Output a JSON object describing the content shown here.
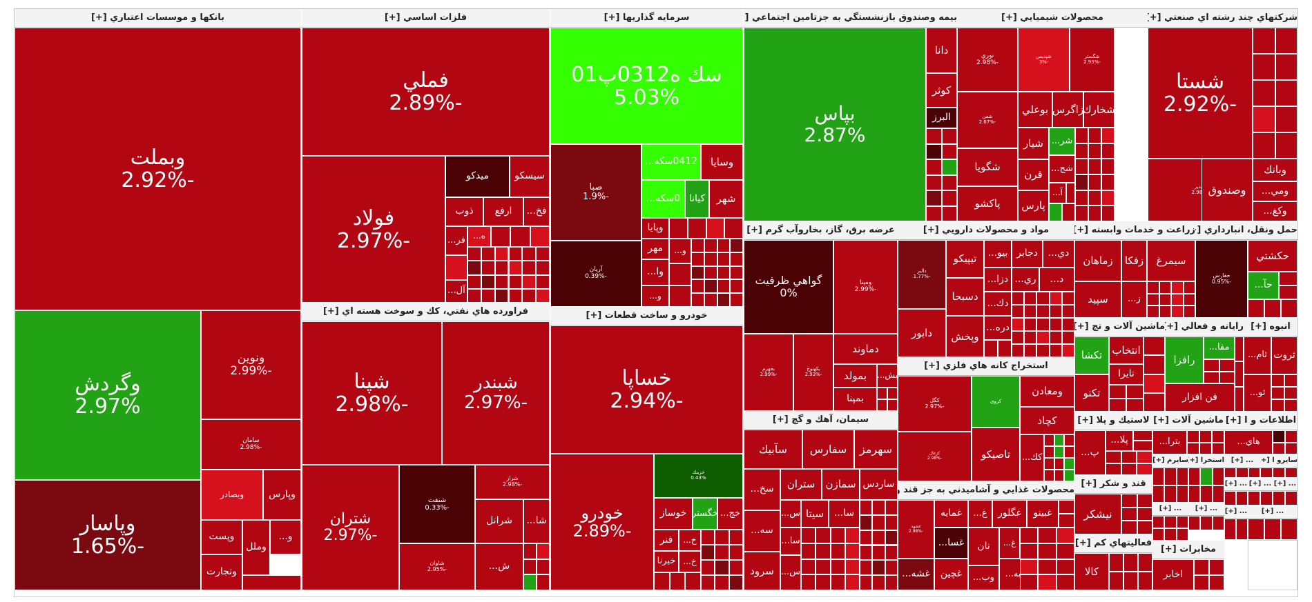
{
  "colors": {
    "red": "#b20612",
    "red_bright": "#d6101d",
    "red_dark": "#7a0a0f",
    "maroon": "#4a0205",
    "green": "#22a316",
    "green_bright": "#33ff00",
    "green_dark": "#0d5c00"
  },
  "sectors": {
    "banks": {
      "title": "بانكها و موسسات اعتباري [+]",
      "tiles": [
        {
          "name": "وبملت",
          "pct": "-2.92%"
        },
        {
          "name": "وگردش",
          "pct": "2.97%"
        },
        {
          "name": "وپاسار",
          "pct": "-1.65%"
        },
        {
          "name": "ونوين",
          "pct": "-2.99%"
        },
        {
          "name": "سامان",
          "pct": "-2.98%"
        },
        {
          "name": "وپارس",
          "pct": ""
        },
        {
          "name": "وبصادر",
          "pct": ""
        },
        {
          "name": "وملل",
          "pct": ""
        },
        {
          "name": "وتجارت",
          "pct": ""
        },
        {
          "name": "وپست",
          "pct": ""
        },
        {
          "name": "و...",
          "pct": ""
        }
      ]
    },
    "metals": {
      "title": "فلزات اساسي [+]",
      "tiles": [
        {
          "name": "فملي",
          "pct": "-2.89%"
        },
        {
          "name": "فولاد",
          "pct": "-2.97%"
        },
        {
          "name": "ميدكو",
          "pct": ""
        },
        {
          "name": "سيسكو",
          "pct": ""
        },
        {
          "name": "ذوب",
          "pct": ""
        },
        {
          "name": "ارفع",
          "pct": ""
        },
        {
          "name": "فخ...",
          "pct": ""
        },
        {
          "name": "فر...",
          "pct": ""
        },
        {
          "name": "آل...",
          "pct": ""
        },
        {
          "name": "ه...",
          "pct": ""
        }
      ]
    },
    "investment": {
      "title": "سرمايه گذاريها [+]",
      "tiles": [
        {
          "name": "سك ه0312پ01",
          "pct": "5.03%"
        },
        {
          "name": "صبا",
          "pct": "-1.9%"
        },
        {
          "name": "آريان",
          "pct": "-0.39%"
        },
        {
          "name": "0412سكه...",
          "pct": ""
        },
        {
          "name": "0سكه...",
          "pct": ""
        },
        {
          "name": "كيانا",
          "pct": ""
        },
        {
          "name": "وسايا",
          "pct": ""
        },
        {
          "name": "شهر",
          "pct": ""
        },
        {
          "name": "وپايا",
          "pct": ""
        },
        {
          "name": "مهر",
          "pct": ""
        },
        {
          "name": "و...",
          "pct": ""
        },
        {
          "name": "وا...",
          "pct": ""
        },
        {
          "name": "و...",
          "pct": ""
        }
      ]
    },
    "insurance": {
      "title": "بيمه وصندوق بازنشستگي به جزتامين اجتماعي [+]",
      "tiles": [
        {
          "name": "بپاس",
          "pct": "2.87%"
        },
        {
          "name": "دانا",
          "pct": ""
        },
        {
          "name": "كوثر",
          "pct": ""
        },
        {
          "name": "البرز",
          "pct": ""
        }
      ]
    },
    "chemicals": {
      "title": "محصولات شيميايي [+]",
      "tiles": [
        {
          "name": "نوري",
          "pct": "-2.98%"
        },
        {
          "name": "شپديس",
          "pct": "-3%"
        },
        {
          "name": "شگستر",
          "pct": "-2.93%"
        },
        {
          "name": "بوعلي",
          "pct": ""
        },
        {
          "name": "زاگرس",
          "pct": ""
        },
        {
          "name": "شخارك",
          "pct": ""
        },
        {
          "name": "شفن",
          "pct": "-2.67%"
        },
        {
          "name": "شگويا",
          "pct": ""
        },
        {
          "name": "پاكشو",
          "pct": ""
        },
        {
          "name": "شيار",
          "pct": ""
        },
        {
          "name": "قرن",
          "pct": ""
        },
        {
          "name": "پارس",
          "pct": ""
        },
        {
          "name": "شج...",
          "pct": ""
        },
        {
          "name": "شر...",
          "pct": ""
        },
        {
          "name": "آ...",
          "pct": ""
        }
      ]
    },
    "diversified": {
      "title": "شركتهاي چند رشته اي صنعتي [+]",
      "tiles": [
        {
          "name": "شستا",
          "pct": "-2.92%"
        },
        {
          "name": "وصندوق",
          "pct": ""
        },
        {
          "name": "وغدير",
          "pct": "-2.98%"
        },
        {
          "name": "وبانك",
          "pct": ""
        },
        {
          "name": "ومي...",
          "pct": ""
        },
        {
          "name": "وكغ...",
          "pct": ""
        }
      ]
    },
    "utilities": {
      "title": "عرضه برق، گاز، بخاروآب گرم [+]",
      "tiles": [
        {
          "name": "گواهي ظرفيت",
          "pct": "0%"
        },
        {
          "name": "ومپنا",
          "pct": "-2.99%"
        },
        {
          "name": "دماوند",
          "pct": ""
        },
        {
          "name": "بمولد",
          "pct": ""
        },
        {
          "name": "بمپنا",
          "pct": ""
        },
        {
          "name": "بش...",
          "pct": ""
        },
        {
          "name": "بجهرم",
          "pct": "-2.99%"
        },
        {
          "name": "بكهنوج",
          "pct": "-2.93%"
        }
      ]
    },
    "pharma": {
      "title": "مواد و محصولات دارويي [+]",
      "tiles": [
        {
          "name": "تيپيكو",
          "pct": ""
        },
        {
          "name": "دسبحا",
          "pct": ""
        },
        {
          "name": "وپخش",
          "pct": ""
        },
        {
          "name": "دابور",
          "pct": ""
        },
        {
          "name": "دجابر",
          "pct": ""
        },
        {
          "name": "بيو...",
          "pct": ""
        },
        {
          "name": "دزا...",
          "pct": ""
        },
        {
          "name": "دك...",
          "pct": ""
        },
        {
          "name": "دره...",
          "pct": ""
        },
        {
          "name": "دي...",
          "pct": ""
        },
        {
          "name": "ري...",
          "pct": ""
        },
        {
          "name": "د...",
          "pct": ""
        },
        {
          "name": "دالبر",
          "pct": "-1.77%"
        }
      ]
    },
    "agri": {
      "title": "زراعت و خدمات وابسته [+]",
      "tiles": [
        {
          "name": "زماهان",
          "pct": ""
        },
        {
          "name": "زفكا",
          "pct": ""
        },
        {
          "name": "سيمرغ",
          "pct": ""
        },
        {
          "name": "سپيد",
          "pct": ""
        },
        {
          "name": "ز...",
          "pct": ""
        }
      ]
    },
    "transport": {
      "title": "حمل ونقل، انبارداري [+]",
      "tiles": [
        {
          "name": "حفارس",
          "pct": "-0.95%"
        },
        {
          "name": "حكشتي",
          "pct": ""
        },
        {
          "name": "حآ...",
          "pct": ""
        }
      ]
    },
    "refinery": {
      "title": "فراورده هاي نفتي، كك و سوخت هسته اي [+]",
      "tiles": [
        {
          "name": "شپنا",
          "pct": "-2.98%"
        },
        {
          "name": "شبندر",
          "pct": "-2.97%"
        },
        {
          "name": "شتران",
          "pct": "-2.97%"
        },
        {
          "name": "شنفت",
          "pct": "-0.33%"
        },
        {
          "name": "شراز",
          "pct": "-2.98%"
        },
        {
          "name": "شرانل",
          "pct": ""
        },
        {
          "name": "شا...",
          "pct": ""
        },
        {
          "name": "ش...",
          "pct": ""
        },
        {
          "name": "شاوان",
          "pct": "-2.95%"
        }
      ]
    },
    "auto": {
      "title": "خودرو و ساخت قطعات [+]",
      "tiles": [
        {
          "name": "خساپا",
          "pct": "-2.94%"
        },
        {
          "name": "خودرو",
          "pct": "-2.89%"
        },
        {
          "name": "خزينك",
          "pct": "0.43%"
        },
        {
          "name": "خگستر",
          "pct": ""
        },
        {
          "name": "خوساز",
          "pct": ""
        },
        {
          "name": "خج...",
          "pct": ""
        },
        {
          "name": "خ...",
          "pct": ""
        },
        {
          "name": "فنر",
          "pct": ""
        },
        {
          "name": "خبرنا",
          "pct": ""
        },
        {
          "name": "خ...",
          "pct": ""
        }
      ]
    },
    "machinery": {
      "title": "ماشين آلات و تج [+]",
      "tiles": [
        {
          "name": "انتخاب",
          "pct": ""
        },
        {
          "name": "تكشا",
          "pct": ""
        },
        {
          "name": "تايرا",
          "pct": ""
        },
        {
          "name": "تكنو",
          "pct": ""
        }
      ]
    },
    "computer": {
      "title": "رايانه و فعالي [+]",
      "tiles": [
        {
          "name": "رافزا",
          "pct": ""
        },
        {
          "name": "مفا...",
          "pct": ""
        },
        {
          "name": "فن افزار",
          "pct": ""
        }
      ]
    },
    "mass": {
      "title": "انبوه [+]",
      "tiles": [
        {
          "name": "ثروت",
          "pct": ""
        },
        {
          "name": "ثام...",
          "pct": ""
        },
        {
          "name": "ثو...",
          "pct": ""
        }
      ]
    },
    "mining": {
      "title": "استخراج كانه هاي فلزي [+]",
      "tiles": [
        {
          "name": "كگل",
          "pct": "-2.97%"
        },
        {
          "name": "كچاد",
          "pct": ""
        },
        {
          "name": "تاصيكو",
          "pct": ""
        },
        {
          "name": "ومعادن",
          "pct": ""
        },
        {
          "name": "كك...",
          "pct": ""
        },
        {
          "name": "كروي",
          "pct": ""
        },
        {
          "name": "كزغال",
          "pct": "-2.98%"
        }
      ]
    },
    "cement": {
      "title": "سيمان، آهك و گچ [+]",
      "tiles": [
        {
          "name": "سآبيك",
          "pct": ""
        },
        {
          "name": "سفارس",
          "pct": ""
        },
        {
          "name": "سهرمز",
          "pct": ""
        },
        {
          "name": "ستران",
          "pct": ""
        },
        {
          "name": "سمازن",
          "pct": ""
        },
        {
          "name": "ساردس",
          "pct": ""
        },
        {
          "name": "سيتا",
          "pct": ""
        },
        {
          "name": "سا...",
          "pct": ""
        },
        {
          "name": "س...",
          "pct": ""
        },
        {
          "name": "سخ...",
          "pct": ""
        },
        {
          "name": "سه...",
          "pct": ""
        },
        {
          "name": "سا...",
          "pct": ""
        },
        {
          "name": "سرود",
          "pct": ""
        },
        {
          "name": "س...",
          "pct": ""
        }
      ]
    },
    "food": {
      "title": "محصولات غذايي و آشاميدني به جز قند و [+]",
      "tiles": [
        {
          "name": "غبينو",
          "pct": ""
        },
        {
          "name": "غگلور",
          "pct": ""
        },
        {
          "name": "غمايه",
          "pct": ""
        },
        {
          "name": "غسا...",
          "pct": ""
        },
        {
          "name": "غشهد",
          "pct": "-2.98%"
        },
        {
          "name": "غشه...",
          "pct": ""
        },
        {
          "name": "غچين",
          "pct": ""
        },
        {
          "name": "نان",
          "pct": ""
        },
        {
          "name": "غ...",
          "pct": ""
        },
        {
          "name": "غ...",
          "pct": ""
        },
        {
          "name": "وب...",
          "pct": ""
        },
        {
          "name": "به...",
          "pct": ""
        }
      ]
    },
    "rubber": {
      "title": "لاستيك و پلا [+]",
      "tiles": [
        {
          "name": "پلا...",
          "pct": ""
        },
        {
          "name": "پ...",
          "pct": ""
        }
      ]
    },
    "machinery2": {
      "title": "ماشين آلات [+]",
      "tiles": [
        {
          "name": "بترا...",
          "pct": ""
        }
      ]
    },
    "info": {
      "title": "اطلاعات و ا [+]",
      "tiles": [
        {
          "name": "هاي...",
          "pct": ""
        }
      ]
    },
    "sugar": {
      "title": "قند و شكر [+]",
      "tiles": [
        {
          "name": "نيشكر",
          "pct": ""
        }
      ]
    },
    "misc": {
      "title": "فعاليتهاي كم [+]",
      "tiles": [
        {
          "name": "كالا",
          "pct": ""
        }
      ]
    },
    "telecom": {
      "title": "مخابرات [+]",
      "tiles": [
        {
          "name": "اخابر",
          "pct": ""
        }
      ]
    },
    "small": {
      "labels": [
        "سايرم [+]",
        "استخرا [+]",
        "... [+]",
        "سايرو ا [+]",
        "... [+]",
        "... [+]",
        "... [+]",
        "... [+]",
        "... [+]",
        "... [+]",
        "... [+]"
      ]
    }
  }
}
